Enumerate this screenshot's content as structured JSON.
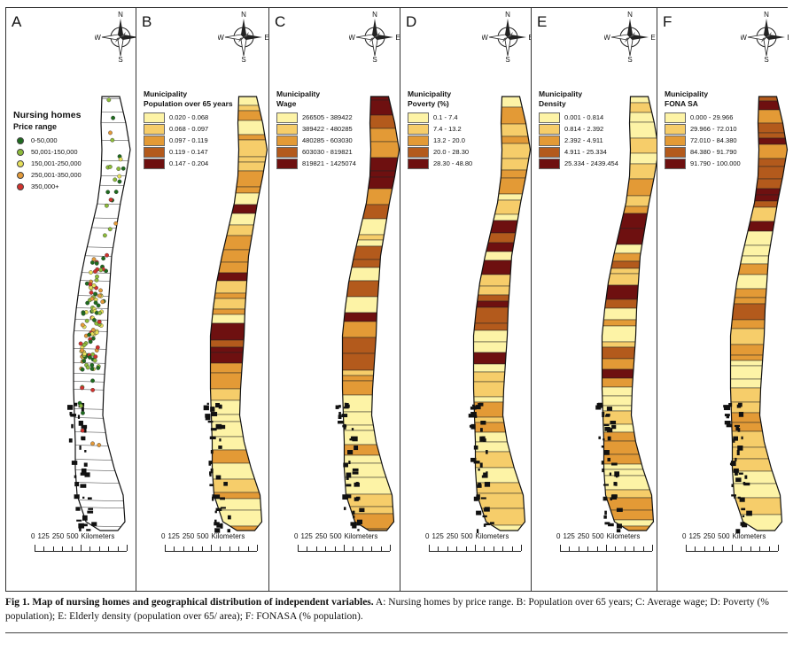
{
  "figure": {
    "panels": [
      {
        "letter": "A",
        "kind": "points",
        "legend_title": "Nursing homes",
        "legend_subtitle": "Price range",
        "classes": [
          {
            "label": "0-50,000",
            "color": "#1e6b1e"
          },
          {
            "label": "50,001-150,000",
            "color": "#8dbb3a"
          },
          {
            "label": "150,001-250,000",
            "color": "#e6df5a"
          },
          {
            "label": "250,001-350,000",
            "color": "#e39a3a"
          },
          {
            "label": "350,000+",
            "color": "#d2322d"
          }
        ]
      },
      {
        "letter": "B",
        "kind": "choropleth",
        "legend_title": "Municipality",
        "legend_subtitle": "Population over 65 years",
        "classes": [
          {
            "label": "0.020 - 0.068",
            "color": "#fdf3a6"
          },
          {
            "label": "0.068 - 0.097",
            "color": "#f6cd6a"
          },
          {
            "label": "0.097 - 0.119",
            "color": "#e39a36"
          },
          {
            "label": "0.119 - 0.147",
            "color": "#b35a1c"
          },
          {
            "label": "0.147 - 0.204",
            "color": "#6e1010"
          }
        ]
      },
      {
        "letter": "C",
        "kind": "choropleth",
        "legend_title": "Municipality",
        "legend_subtitle": "Wage",
        "classes": [
          {
            "label": "266505 - 389422",
            "color": "#fdf3a6"
          },
          {
            "label": "389422 - 480285",
            "color": "#f6cd6a"
          },
          {
            "label": "480285 - 603030",
            "color": "#e39a36"
          },
          {
            "label": "603030 - 819821",
            "color": "#b35a1c"
          },
          {
            "label": "819821 - 1425074",
            "color": "#6e1010"
          }
        ]
      },
      {
        "letter": "D",
        "kind": "choropleth",
        "legend_title": "Municipality",
        "legend_subtitle": "Poverty (%)",
        "classes": [
          {
            "label": "0.1 - 7.4",
            "color": "#fdf3a6"
          },
          {
            "label": "7.4 - 13.2",
            "color": "#f6cd6a"
          },
          {
            "label": "13.2 - 20.0",
            "color": "#e39a36"
          },
          {
            "label": "20.0 - 28.30",
            "color": "#b35a1c"
          },
          {
            "label": "28.30 - 48.80",
            "color": "#6e1010"
          }
        ]
      },
      {
        "letter": "E",
        "kind": "choropleth",
        "legend_title": "Municipality",
        "legend_subtitle": "Density",
        "classes": [
          {
            "label": "0.001 - 0.814",
            "color": "#fdf3a6"
          },
          {
            "label": "0.814 - 2.392",
            "color": "#f6cd6a"
          },
          {
            "label": "2.392 - 4.911",
            "color": "#e39a36"
          },
          {
            "label": "4.911 - 25.334",
            "color": "#b35a1c"
          },
          {
            "label": "25.334 - 2439.454",
            "color": "#6e1010"
          }
        ]
      },
      {
        "letter": "F",
        "kind": "choropleth",
        "legend_title": "Municipality",
        "legend_subtitle": "FONA SA",
        "classes": [
          {
            "label": "0.000 - 29.966",
            "color": "#fdf3a6"
          },
          {
            "label": "29.966 - 72.010",
            "color": "#f6cd6a"
          },
          {
            "label": "72.010 - 84.380",
            "color": "#e39a36"
          },
          {
            "label": "84.380 - 91.790",
            "color": "#b35a1c"
          },
          {
            "label": "91.790 - 100.000",
            "color": "#6e1010"
          }
        ]
      }
    ],
    "compass": {
      "n": "N",
      "s": "S",
      "e": "E",
      "w": "W"
    },
    "scalebar": {
      "labels": [
        "0",
        "125",
        "250",
        "500",
        "Kilometers"
      ]
    },
    "boundary_color": "#111111"
  },
  "caption": {
    "fig_num": "Fig 1.",
    "title": "Map of nursing homes and geographical distribution of independent variables.",
    "body": "A: Nursing homes by price range. B: Population over 65 years; C: Average wage; D: Poverty (% population); E: Elderly density (population over 65/ area); F: FONASA (% population)."
  }
}
